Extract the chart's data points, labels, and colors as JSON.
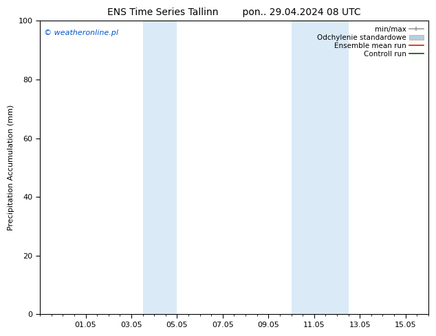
{
  "title_left": "ENS Time Series Tallinn",
  "title_right": "pon.. 29.04.2024 08 UTC",
  "ylabel": "Precipitation Accumulation (mm)",
  "copyright_text": "© weatheronline.pl",
  "copyright_color": "#0055cc",
  "ylim": [
    0,
    100
  ],
  "bg_color": "#ffffff",
  "plot_bg_color": "#ffffff",
  "shaded_regions": [
    {
      "xstart": 4.0,
      "xend": 5.5,
      "color": "#daeaf7"
    },
    {
      "xstart": 10.5,
      "xend": 11.5,
      "color": "#daeaf7"
    },
    {
      "xstart": 11.5,
      "xend": 13.0,
      "color": "#daeaf7"
    }
  ],
  "xlim": [
    -0.5,
    16.5
  ],
  "xtick_positions": [
    1.5,
    3.5,
    5.5,
    7.5,
    9.5,
    11.5,
    13.5,
    15.5
  ],
  "xtick_labels": [
    "01.05",
    "03.05",
    "05.05",
    "07.05",
    "09.05",
    "11.05",
    "13.05",
    "15.05"
  ],
  "ytick_positions": [
    0,
    20,
    40,
    60,
    80,
    100
  ],
  "legend_labels": [
    "min/max",
    "Odchylenie standardowe",
    "Ensemble mean run",
    "Controll run"
  ],
  "legend_colors_line": [
    "#999999",
    "#bbccdd",
    "#cc2200",
    "#005500"
  ],
  "font_size": 8,
  "title_font_size": 10,
  "legend_font_size": 7.5
}
